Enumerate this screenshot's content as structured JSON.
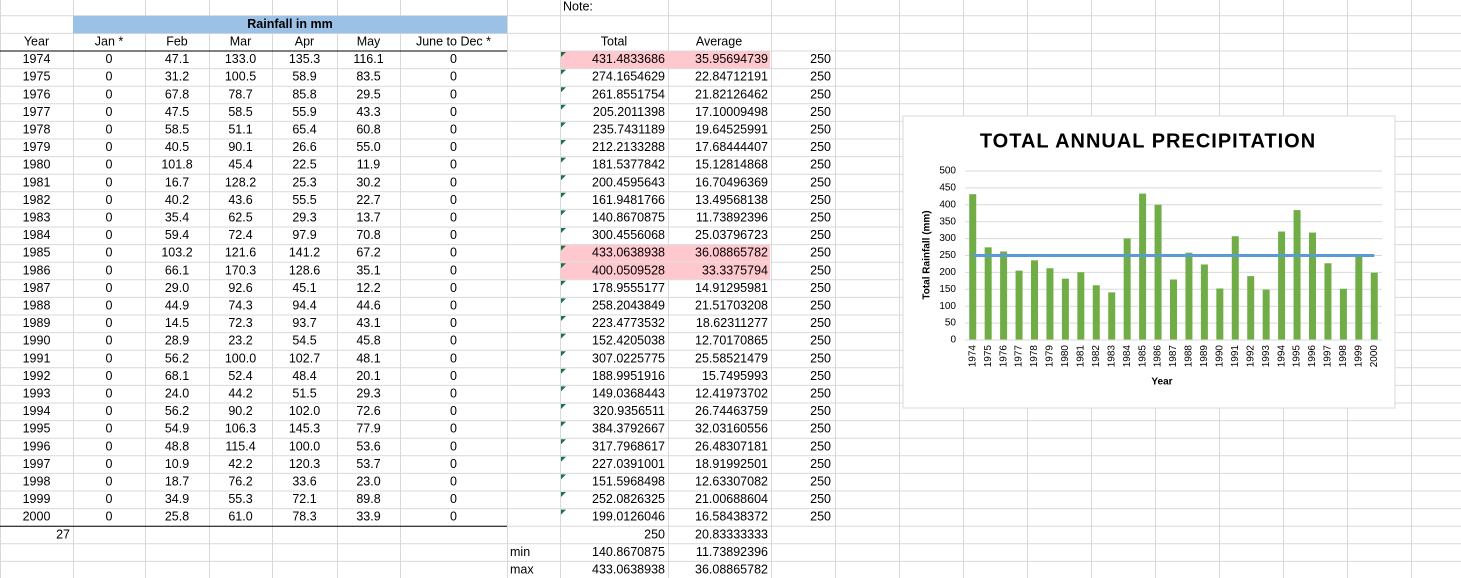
{
  "sheet": {
    "note": "Note:",
    "header": "Rainfall in mm",
    "columns": [
      "Year",
      "Jan *",
      "Feb",
      "Mar",
      "Apr",
      "May",
      "June to Dec *"
    ],
    "rows": [
      [
        "1974",
        "0",
        "47.1",
        "133.0",
        "135.3",
        "116.1",
        "0"
      ],
      [
        "1975",
        "0",
        "31.2",
        "100.5",
        "58.9",
        "83.5",
        "0"
      ],
      [
        "1976",
        "0",
        "67.8",
        "78.7",
        "85.8",
        "29.5",
        "0"
      ],
      [
        "1977",
        "0",
        "47.5",
        "58.5",
        "55.9",
        "43.3",
        "0"
      ],
      [
        "1978",
        "0",
        "58.5",
        "51.1",
        "65.4",
        "60.8",
        "0"
      ],
      [
        "1979",
        "0",
        "40.5",
        "90.1",
        "26.6",
        "55.0",
        "0"
      ],
      [
        "1980",
        "0",
        "101.8",
        "45.4",
        "22.5",
        "11.9",
        "0"
      ],
      [
        "1981",
        "0",
        "16.7",
        "128.2",
        "25.3",
        "30.2",
        "0"
      ],
      [
        "1982",
        "0",
        "40.2",
        "43.6",
        "55.5",
        "22.7",
        "0"
      ],
      [
        "1983",
        "0",
        "35.4",
        "62.5",
        "29.3",
        "13.7",
        "0"
      ],
      [
        "1984",
        "0",
        "59.4",
        "72.4",
        "97.9",
        "70.8",
        "0"
      ],
      [
        "1985",
        "0",
        "103.2",
        "121.6",
        "141.2",
        "67.2",
        "0"
      ],
      [
        "1986",
        "0",
        "66.1",
        "170.3",
        "128.6",
        "35.1",
        "0"
      ],
      [
        "1987",
        "0",
        "29.0",
        "92.6",
        "45.1",
        "12.2",
        "0"
      ],
      [
        "1988",
        "0",
        "44.9",
        "74.3",
        "94.4",
        "44.6",
        "0"
      ],
      [
        "1989",
        "0",
        "14.5",
        "72.3",
        "93.7",
        "43.1",
        "0"
      ],
      [
        "1990",
        "0",
        "28.9",
        "23.2",
        "54.5",
        "45.8",
        "0"
      ],
      [
        "1991",
        "0",
        "56.2",
        "100.0",
        "102.7",
        "48.1",
        "0"
      ],
      [
        "1992",
        "0",
        "68.1",
        "52.4",
        "48.4",
        "20.1",
        "0"
      ],
      [
        "1993",
        "0",
        "24.0",
        "44.2",
        "51.5",
        "29.3",
        "0"
      ],
      [
        "1994",
        "0",
        "56.2",
        "90.2",
        "102.0",
        "72.6",
        "0"
      ],
      [
        "1995",
        "0",
        "54.9",
        "106.3",
        "145.3",
        "77.9",
        "0"
      ],
      [
        "1996",
        "0",
        "48.8",
        "115.4",
        "100.0",
        "53.6",
        "0"
      ],
      [
        "1997",
        "0",
        "10.9",
        "42.2",
        "120.3",
        "53.7",
        "0"
      ],
      [
        "1998",
        "0",
        "18.7",
        "76.2",
        "33.6",
        "23.0",
        "0"
      ],
      [
        "1999",
        "0",
        "34.9",
        "55.3",
        "72.1",
        "89.8",
        "0"
      ],
      [
        "2000",
        "0",
        "25.8",
        "61.0",
        "78.3",
        "33.9",
        "0"
      ]
    ],
    "summary_columns": [
      "Total",
      "Average"
    ],
    "summary_rows": [
      [
        "431.4833686",
        "35.95694739",
        "250"
      ],
      [
        "274.1654629",
        "22.84712191",
        "250"
      ],
      [
        "261.8551754",
        "21.82126462",
        "250"
      ],
      [
        "205.2011398",
        "17.10009498",
        "250"
      ],
      [
        "235.7431189",
        "19.64525991",
        "250"
      ],
      [
        "212.2133288",
        "17.68444407",
        "250"
      ],
      [
        "181.5377842",
        "15.12814868",
        "250"
      ],
      [
        "200.4595643",
        "16.70496369",
        "250"
      ],
      [
        "161.9481766",
        "13.49568138",
        "250"
      ],
      [
        "140.8670875",
        "11.73892396",
        "250"
      ],
      [
        "300.4556068",
        "25.03796723",
        "250"
      ],
      [
        "433.0638938",
        "36.08865782",
        "250"
      ],
      [
        "400.0509528",
        "33.3375794",
        "250"
      ],
      [
        "178.9555177",
        "14.91295981",
        "250"
      ],
      [
        "258.2043849",
        "21.51703208",
        "250"
      ],
      [
        "223.4773532",
        "18.62311277",
        "250"
      ],
      [
        "152.4205038",
        "12.70170865",
        "250"
      ],
      [
        "307.0225775",
        "25.58521479",
        "250"
      ],
      [
        "188.9951916",
        "15.7495993",
        "250"
      ],
      [
        "149.0368443",
        "12.41973702",
        "250"
      ],
      [
        "320.9356511",
        "26.74463759",
        "250"
      ],
      [
        "384.3792667",
        "32.03160556",
        "250"
      ],
      [
        "317.7968617",
        "26.48307181",
        "250"
      ],
      [
        "227.0391001",
        "18.91992501",
        "250"
      ],
      [
        "151.5968498",
        "12.63307082",
        "250"
      ],
      [
        "252.0826325",
        "21.00688604",
        "250"
      ],
      [
        "199.0126046",
        "16.58438372",
        "250"
      ]
    ],
    "highlighted_rows": [
      0,
      11,
      12
    ],
    "count": "27",
    "totals_row": [
      "250",
      "20.83333333"
    ],
    "min": {
      "label": "min",
      "values": [
        "140.8670875",
        "11.73892396"
      ]
    },
    "max": {
      "label": "max",
      "values": [
        "433.0638938",
        "36.08865782"
      ]
    }
  },
  "chart_data": {
    "type": "bar",
    "title": "TOTAL ANNUAL PRECIPITATION",
    "x_label": "Year",
    "y_label": "Total Rainfall (mm)",
    "categories": [
      "1974",
      "1975",
      "1976",
      "1977",
      "1978",
      "1979",
      "1980",
      "1981",
      "1982",
      "1983",
      "1984",
      "1985",
      "1986",
      "1987",
      "1988",
      "1989",
      "1990",
      "1991",
      "1992",
      "1993",
      "1994",
      "1995",
      "1996",
      "1997",
      "1998",
      "1999",
      "2000"
    ],
    "series": [
      {
        "type": "bar",
        "color": "#70ad47",
        "values": [
          431.4833686,
          274.1654629,
          261.8551754,
          205.2011398,
          235.7431189,
          212.2133288,
          181.5377842,
          200.4595643,
          161.9481766,
          140.8670875,
          300.4556068,
          433.0638938,
          400.0509528,
          178.9555177,
          258.2043849,
          223.4773532,
          152.4205038,
          307.0225775,
          188.9951916,
          149.0368443,
          320.9356511,
          384.3792667,
          317.7968617,
          227.0391001,
          151.5968498,
          252.0826325,
          199.0126046
        ]
      },
      {
        "type": "line",
        "color": "#5b9bd5",
        "values": [
          250,
          250,
          250,
          250,
          250,
          250,
          250,
          250,
          250,
          250,
          250,
          250,
          250,
          250,
          250,
          250,
          250,
          250,
          250,
          250,
          250,
          250,
          250,
          250,
          250,
          250,
          250
        ]
      }
    ],
    "ylim": [
      0,
      500
    ],
    "yticks": [
      0,
      50,
      100,
      150,
      200,
      250,
      300,
      350,
      400,
      450,
      500
    ],
    "grid": true
  }
}
